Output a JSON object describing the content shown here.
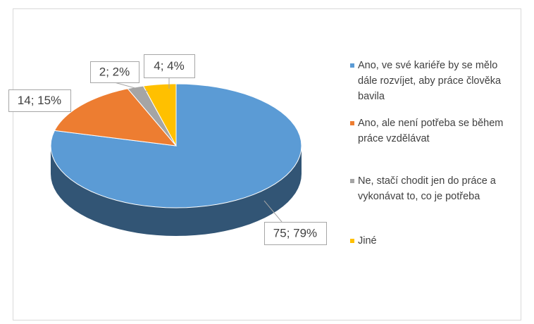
{
  "chart_data": {
    "type": "pie3d",
    "categories": [
      "Ano, ve své kariéře by se mělo dále rozvíjet, aby práce člověka bavila",
      "Ano, ale není potřeba se během práce vzdělávat",
      "Ne, stačí chodit jen do práce a vykonávat to, co je potřeba",
      "Jiné"
    ],
    "values": [
      75,
      14,
      2,
      4
    ],
    "value_labels": [
      "75; 79%",
      "14; 15%",
      "2; 2%",
      "4; 4%"
    ],
    "colors": [
      "#5b9bd5",
      "#ed7d31",
      "#a5a5a5",
      "#ffc000"
    ],
    "legend": "right"
  }
}
